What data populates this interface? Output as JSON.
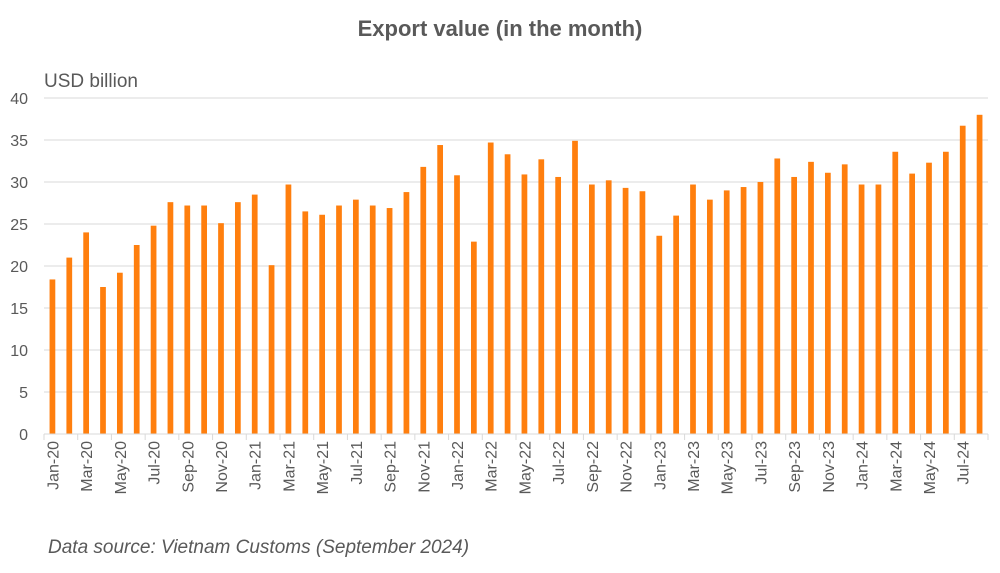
{
  "chart_data": {
    "type": "bar",
    "title": "Export value (in the month)",
    "ylabel": "USD billion",
    "ylim": [
      0,
      40
    ],
    "yticks": [
      0,
      5,
      10,
      15,
      20,
      25,
      30,
      35,
      40
    ],
    "grid": true,
    "categories": [
      "Jan-20",
      "Feb-20",
      "Mar-20",
      "Apr-20",
      "May-20",
      "Jun-20",
      "Jul-20",
      "Aug-20",
      "Sep-20",
      "Oct-20",
      "Nov-20",
      "Dec-20",
      "Jan-21",
      "Feb-21",
      "Mar-21",
      "Apr-21",
      "May-21",
      "Jun-21",
      "Jul-21",
      "Aug-21",
      "Sep-21",
      "Oct-21",
      "Nov-21",
      "Dec-21",
      "Jan-22",
      "Feb-22",
      "Mar-22",
      "Apr-22",
      "May-22",
      "Jun-22",
      "Jul-22",
      "Aug-22",
      "Sep-22",
      "Oct-22",
      "Nov-22",
      "Dec-22",
      "Jan-23",
      "Feb-23",
      "Mar-23",
      "Apr-23",
      "May-23",
      "Jun-23",
      "Jul-23",
      "Aug-23",
      "Sep-23",
      "Oct-23",
      "Nov-23",
      "Dec-23",
      "Jan-24",
      "Feb-24",
      "Mar-24",
      "Apr-24",
      "May-24",
      "Jun-24",
      "Jul-24",
      "Aug-24"
    ],
    "tick_labels": [
      "Jan-20",
      "Mar-20",
      "May-20",
      "Jul-20",
      "Sep-20",
      "Nov-20",
      "Jan-21",
      "Mar-21",
      "May-21",
      "Jul-21",
      "Sep-21",
      "Nov-21",
      "Jan-22",
      "Mar-22",
      "May-22",
      "Jul-22",
      "Sep-22",
      "Nov-22",
      "Jan-23",
      "Mar-23",
      "May-23",
      "Jul-23",
      "Sep-23",
      "Nov-23",
      "Jan-24",
      "Mar-24",
      "May-24",
      "Jul-24"
    ],
    "values": [
      18.4,
      21.0,
      24.0,
      17.5,
      19.2,
      22.5,
      24.8,
      27.6,
      27.2,
      27.2,
      25.1,
      27.6,
      28.5,
      20.1,
      29.7,
      26.5,
      26.1,
      27.2,
      27.9,
      27.2,
      26.9,
      28.8,
      31.8,
      34.4,
      30.8,
      22.9,
      34.7,
      33.3,
      30.9,
      32.7,
      30.6,
      34.9,
      29.7,
      30.2,
      29.3,
      28.9,
      23.6,
      26.0,
      29.7,
      27.9,
      29.0,
      29.4,
      30.0,
      32.8,
      30.6,
      32.4,
      31.1,
      32.1,
      29.7,
      29.7,
      33.6,
      31.0,
      32.3,
      33.6,
      36.7,
      38.0
    ],
    "bar_color": "#FF7F0E",
    "grid_color": "#D9D9D9",
    "text_color": "#595959"
  },
  "source_note": "Data source: Vietnam Customs (September 2024)"
}
